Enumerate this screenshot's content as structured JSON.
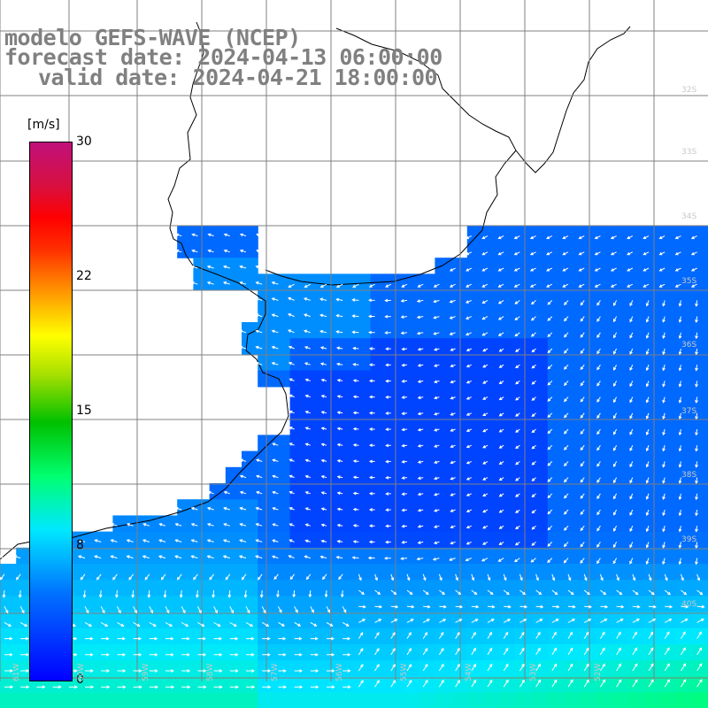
{
  "title": {
    "line1": "modelo GEFS-WAVE (NCEP)",
    "line2": "forecast date: 2024-04-13 06:00:00",
    "line3": "valid date: 2024-04-21 18:00:00"
  },
  "colorbar": {
    "unit": "[m/s]",
    "min": 0,
    "max": 30,
    "ticks": [
      {
        "label": "30",
        "value": 30
      },
      {
        "label": "22",
        "value": 22
      },
      {
        "label": "15",
        "value": 15
      },
      {
        "label": "8",
        "value": 8
      },
      {
        "label": "0",
        "value": 0
      }
    ],
    "gradient": [
      "#0000ff",
      "#0070ff",
      "#00e8ff",
      "#00ff70",
      "#00c000",
      "#a8e000",
      "#ffff00",
      "#ff9a00",
      "#ff3000",
      "#ff0000",
      "#d81040",
      "#c0107a"
    ]
  },
  "map": {
    "lat_labels": [
      "32S",
      "33S",
      "34S",
      "35S",
      "36S",
      "37S",
      "38S",
      "39S",
      "40S"
    ],
    "lon_labels": [
      "61W",
      "60W",
      "59W",
      "58W",
      "57W",
      "56W",
      "55W",
      "54W",
      "53W",
      "52W"
    ],
    "land_color": "#ffffff",
    "grid_color": "#808080",
    "arrow_color": "#ffffff"
  }
}
